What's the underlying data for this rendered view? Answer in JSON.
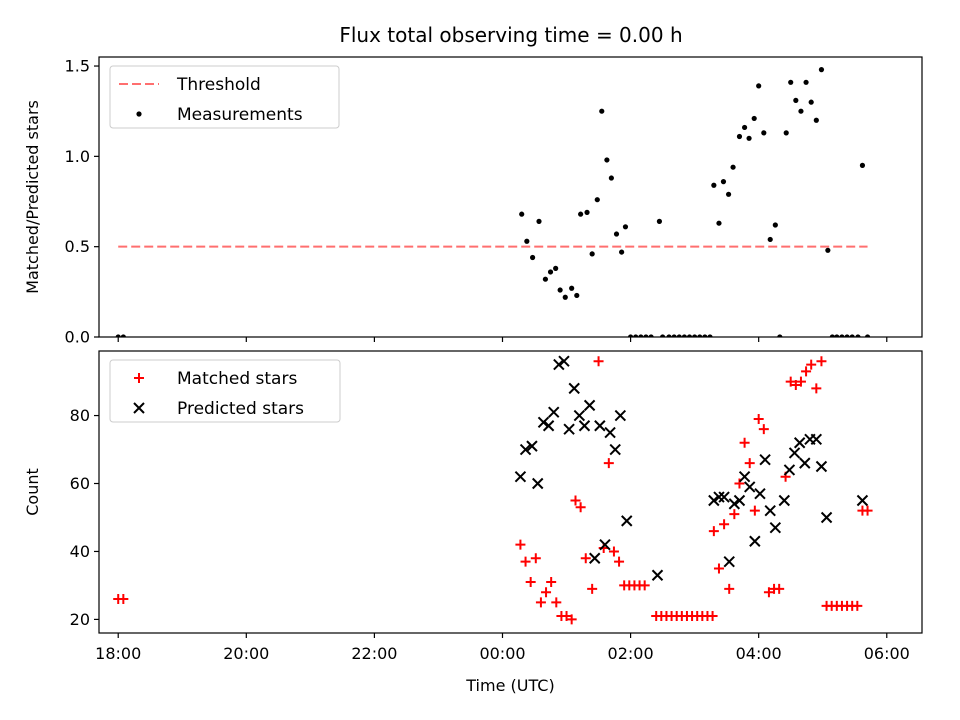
{
  "chart_data": [
    {
      "type": "scatter",
      "title": "Flux total observing time = 0.00 h",
      "xlabel": "",
      "ylabel": "Matched/Predicted stars",
      "x_axis": "time (hours since 18:00 UTC)",
      "xlim": [
        -0.3,
        12.55
      ],
      "ylim": [
        0.0,
        1.55
      ],
      "yticks": [
        0.0,
        0.5,
        1.0,
        1.5
      ],
      "ytick_labels": [
        "0.0",
        "0.5",
        "1.0",
        "1.5"
      ],
      "legend": {
        "placement": "top-left",
        "entries": [
          "Threshold",
          "Measurements"
        ]
      },
      "threshold": {
        "name": "Threshold",
        "value": 0.5,
        "x_range": [
          0.0,
          11.7
        ],
        "color": "#ff6f6f"
      },
      "series": [
        {
          "name": "Measurements",
          "color": "#000000",
          "points": [
            [
              0.0,
              0.0
            ],
            [
              0.08,
              0.0
            ],
            [
              6.3,
              0.68
            ],
            [
              6.38,
              0.53
            ],
            [
              6.47,
              0.44
            ],
            [
              6.57,
              0.64
            ],
            [
              6.67,
              0.32
            ],
            [
              6.75,
              0.36
            ],
            [
              6.83,
              0.38
            ],
            [
              6.9,
              0.26
            ],
            [
              6.98,
              0.22
            ],
            [
              7.08,
              0.27
            ],
            [
              7.16,
              0.23
            ],
            [
              7.22,
              0.68
            ],
            [
              7.32,
              0.69
            ],
            [
              7.4,
              0.46
            ],
            [
              7.48,
              0.76
            ],
            [
              7.55,
              1.25
            ],
            [
              7.63,
              0.98
            ],
            [
              7.7,
              0.88
            ],
            [
              7.78,
              0.57
            ],
            [
              7.86,
              0.47
            ],
            [
              7.92,
              0.61
            ],
            [
              8.0,
              0.0
            ],
            [
              8.08,
              0.0
            ],
            [
              8.16,
              0.0
            ],
            [
              8.24,
              0.0
            ],
            [
              8.32,
              0.0
            ],
            [
              8.45,
              0.64
            ],
            [
              8.5,
              0.0
            ],
            [
              8.6,
              0.0
            ],
            [
              8.68,
              0.0
            ],
            [
              8.76,
              0.0
            ],
            [
              8.84,
              0.0
            ],
            [
              8.92,
              0.0
            ],
            [
              9.0,
              0.0
            ],
            [
              9.08,
              0.0
            ],
            [
              9.16,
              0.0
            ],
            [
              9.24,
              0.0
            ],
            [
              9.3,
              0.84
            ],
            [
              9.38,
              0.63
            ],
            [
              9.45,
              0.86
            ],
            [
              9.53,
              0.79
            ],
            [
              9.6,
              0.94
            ],
            [
              9.7,
              1.11
            ],
            [
              9.78,
              1.16
            ],
            [
              9.85,
              1.1
            ],
            [
              9.93,
              1.21
            ],
            [
              10.0,
              1.39
            ],
            [
              10.08,
              1.13
            ],
            [
              10.18,
              0.54
            ],
            [
              10.26,
              0.62
            ],
            [
              10.33,
              0.0
            ],
            [
              10.43,
              1.13
            ],
            [
              10.5,
              1.41
            ],
            [
              10.58,
              1.31
            ],
            [
              10.66,
              1.25
            ],
            [
              10.74,
              1.41
            ],
            [
              10.82,
              1.3
            ],
            [
              10.9,
              1.2
            ],
            [
              10.98,
              1.48
            ],
            [
              11.08,
              0.48
            ],
            [
              11.15,
              0.0
            ],
            [
              11.22,
              0.0
            ],
            [
              11.3,
              0.0
            ],
            [
              11.38,
              0.0
            ],
            [
              11.46,
              0.0
            ],
            [
              11.55,
              0.0
            ],
            [
              11.62,
              0.95
            ],
            [
              11.7,
              0.0
            ]
          ]
        }
      ]
    },
    {
      "type": "scatter",
      "title": "",
      "xlabel": "Time (UTC)",
      "ylabel": "Count",
      "x_axis": "time (hours since 18:00 UTC)",
      "xlim": [
        -0.3,
        12.55
      ],
      "ylim": [
        16,
        99
      ],
      "xticks": [
        0,
        2,
        4,
        6,
        8,
        10,
        12
      ],
      "xtick_labels": [
        "18:00",
        "20:00",
        "22:00",
        "00:00",
        "02:00",
        "04:00",
        "06:00"
      ],
      "yticks": [
        20,
        40,
        60,
        80
      ],
      "ytick_labels": [
        "20",
        "40",
        "60",
        "80"
      ],
      "legend": {
        "placement": "top-left",
        "entries": [
          "Matched stars",
          "Predicted stars"
        ]
      },
      "series": [
        {
          "name": "Matched stars",
          "marker": "plus",
          "color": "#ff0000",
          "points": [
            [
              0.0,
              26
            ],
            [
              0.08,
              26
            ],
            [
              6.28,
              42
            ],
            [
              6.36,
              37
            ],
            [
              6.44,
              31
            ],
            [
              6.52,
              38
            ],
            [
              6.6,
              25
            ],
            [
              6.68,
              28
            ],
            [
              6.76,
              31
            ],
            [
              6.84,
              25
            ],
            [
              6.92,
              21
            ],
            [
              7.0,
              21
            ],
            [
              7.08,
              20
            ],
            [
              7.14,
              55
            ],
            [
              7.22,
              53
            ],
            [
              7.3,
              38
            ],
            [
              7.4,
              29
            ],
            [
              7.5,
              96
            ],
            [
              7.58,
              41
            ],
            [
              7.66,
              66
            ],
            [
              7.74,
              40
            ],
            [
              7.82,
              37
            ],
            [
              7.9,
              30
            ],
            [
              7.98,
              30
            ],
            [
              8.06,
              30
            ],
            [
              8.14,
              30
            ],
            [
              8.22,
              30
            ],
            [
              8.4,
              21
            ],
            [
              8.48,
              21
            ],
            [
              8.56,
              21
            ],
            [
              8.64,
              21
            ],
            [
              8.72,
              21
            ],
            [
              8.8,
              21
            ],
            [
              8.88,
              21
            ],
            [
              8.96,
              21
            ],
            [
              9.04,
              21
            ],
            [
              9.12,
              21
            ],
            [
              9.2,
              21
            ],
            [
              9.28,
              21
            ],
            [
              9.3,
              46
            ],
            [
              9.38,
              35
            ],
            [
              9.46,
              48
            ],
            [
              9.54,
              29
            ],
            [
              9.62,
              51
            ],
            [
              9.7,
              60
            ],
            [
              9.78,
              72
            ],
            [
              9.86,
              66
            ],
            [
              9.94,
              52
            ],
            [
              10.0,
              79
            ],
            [
              10.08,
              76
            ],
            [
              10.16,
              28
            ],
            [
              10.24,
              29
            ],
            [
              10.32,
              29
            ],
            [
              10.42,
              62
            ],
            [
              10.5,
              90
            ],
            [
              10.58,
              89
            ],
            [
              10.66,
              90
            ],
            [
              10.74,
              93
            ],
            [
              10.82,
              95
            ],
            [
              10.9,
              88
            ],
            [
              10.98,
              96
            ],
            [
              11.06,
              24
            ],
            [
              11.14,
              24
            ],
            [
              11.22,
              24
            ],
            [
              11.3,
              24
            ],
            [
              11.38,
              24
            ],
            [
              11.46,
              24
            ],
            [
              11.54,
              24
            ],
            [
              11.62,
              52
            ],
            [
              11.7,
              52
            ]
          ]
        },
        {
          "name": "Predicted stars",
          "marker": "x",
          "color": "#000000",
          "points": [
            [
              6.28,
              62
            ],
            [
              6.36,
              70
            ],
            [
              6.46,
              71
            ],
            [
              6.55,
              60
            ],
            [
              6.64,
              78
            ],
            [
              6.72,
              77
            ],
            [
              6.8,
              81
            ],
            [
              6.88,
              95
            ],
            [
              6.96,
              96
            ],
            [
              7.04,
              76
            ],
            [
              7.12,
              88
            ],
            [
              7.2,
              80
            ],
            [
              7.28,
              77
            ],
            [
              7.36,
              83
            ],
            [
              7.44,
              38
            ],
            [
              7.52,
              77
            ],
            [
              7.6,
              42
            ],
            [
              7.68,
              75
            ],
            [
              7.76,
              70
            ],
            [
              7.84,
              80
            ],
            [
              7.94,
              49
            ],
            [
              8.42,
              33
            ],
            [
              9.3,
              55
            ],
            [
              9.38,
              56
            ],
            [
              9.46,
              56
            ],
            [
              9.54,
              37
            ],
            [
              9.62,
              54
            ],
            [
              9.7,
              55
            ],
            [
              9.78,
              62
            ],
            [
              9.86,
              59
            ],
            [
              9.94,
              43
            ],
            [
              10.02,
              57
            ],
            [
              10.1,
              67
            ],
            [
              10.18,
              52
            ],
            [
              10.26,
              47
            ],
            [
              10.4,
              55
            ],
            [
              10.48,
              64
            ],
            [
              10.56,
              69
            ],
            [
              10.64,
              72
            ],
            [
              10.72,
              66
            ],
            [
              10.8,
              73
            ],
            [
              10.9,
              73
            ],
            [
              10.98,
              65
            ],
            [
              11.06,
              50
            ],
            [
              11.62,
              55
            ]
          ]
        }
      ]
    }
  ]
}
